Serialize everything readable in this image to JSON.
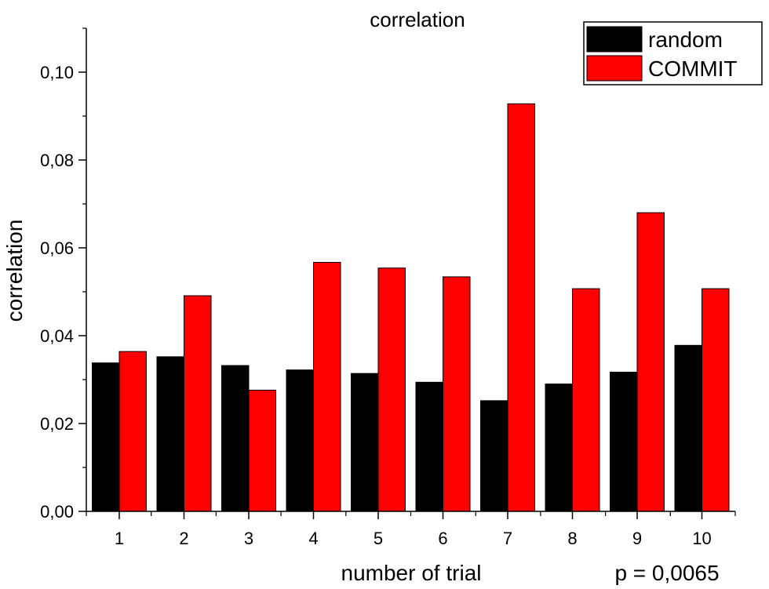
{
  "chart_data": {
    "type": "bar",
    "title": "correlation",
    "xlabel": "number of trial",
    "ylabel": "correlation",
    "annotation": "p = 0,0065",
    "categories": [
      "1",
      "2",
      "3",
      "4",
      "5",
      "6",
      "7",
      "8",
      "9",
      "10"
    ],
    "series": [
      {
        "name": "random",
        "color": "#000000",
        "values": [
          0.0338,
          0.0352,
          0.0332,
          0.0322,
          0.0314,
          0.0294,
          0.0252,
          0.029,
          0.0317,
          0.0378
        ]
      },
      {
        "name": "COMMIT",
        "color": "#ff0000",
        "values": [
          0.0364,
          0.0491,
          0.0276,
          0.0567,
          0.0554,
          0.0534,
          0.0928,
          0.0507,
          0.068,
          0.0507
        ]
      }
    ],
    "ylim": [
      0,
      0.11
    ],
    "yticks": [
      {
        "value": 0.0,
        "label": "0,00"
      },
      {
        "value": 0.02,
        "label": "0,02"
      },
      {
        "value": 0.04,
        "label": "0,04"
      },
      {
        "value": 0.06,
        "label": "0,06"
      },
      {
        "value": 0.08,
        "label": "0,08"
      },
      {
        "value": 0.1,
        "label": "0,10"
      }
    ],
    "legend_position": "top-right",
    "grid": false
  }
}
